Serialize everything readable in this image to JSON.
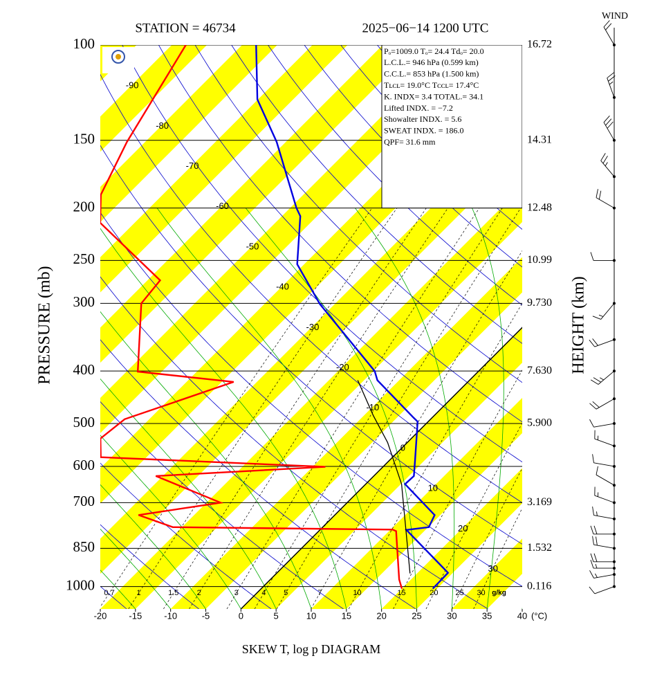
{
  "chart_data": {
    "type": "skewt",
    "title": "STATION = 46734",
    "subtitle": "2025−06−14 1200 UTC",
    "footer": "SKEW T, log p DIAGRAM",
    "y_label": "PRESSURE (mb)",
    "y2_label": "HEIGHT (km)",
    "x_unit": "(°C)",
    "wind_label": "WIND",
    "xlim": [
      -20,
      40
    ],
    "xticks": [
      -20,
      -15,
      -10,
      -5,
      0,
      5,
      10,
      15,
      20,
      25,
      30,
      35,
      40
    ],
    "ylim": [
      1100,
      100
    ],
    "log_y": true,
    "yticks": [
      100,
      150,
      200,
      250,
      300,
      400,
      500,
      600,
      700,
      850,
      1000
    ],
    "height_labels": [
      "16.72",
      "14.31",
      "12.48",
      "10.99",
      "9.730",
      "7.630",
      "5.900",
      null,
      "3.169",
      "1.532",
      "0.116"
    ],
    "isotherm_labels": [
      -90,
      -80,
      -70,
      -60,
      -50,
      -40,
      -30,
      -20,
      -10,
      0,
      10,
      20,
      30
    ],
    "mixing_ratios": [
      0.7,
      1,
      1.5,
      2,
      3,
      4,
      5,
      7,
      10,
      15,
      20,
      25,
      30
    ],
    "mixing_ratio_unit": "g/kg",
    "info": [
      "Pₒ=1009.0 Tₒ= 24.4 Tdₒ= 20.0",
      "L.C.L.= 946 hPa (0.599 km)",
      "C.C.L.= 853 hPa (1.500 km)",
      "Tʟᴄʟ= 19.0°C Tᴄᴄʟ= 17.4°C",
      "K. INDX= 3.4 TOTAL.= 34.1",
      "Lifted INDX. = −7.2",
      "Showalter INDX. = 5.6",
      "SWEAT INDX. = 186.0",
      "QPF= 31.6 mm"
    ],
    "series": [
      {
        "color": "#0000e0",
        "pressure": [
          1009,
          943,
          786,
          777,
          738,
          647,
          625,
          584,
          496,
          488,
          416,
          400,
          301,
          254,
          207,
          200,
          151,
          126,
          100
        ],
        "values": [
          24.4,
          24.3,
          12.3,
          15.1,
          14.2,
          5.6,
          5.7,
          3.6,
          -1.5,
          -2.6,
          -13.1,
          -14.8,
          -32.1,
          -41.0,
          -47.4,
          -49.1,
          -61.3,
          -70.1,
          -78.0
        ]
      },
      {
        "color": "#ff0000",
        "pressure": [
          1009,
          970,
          790,
          785,
          777,
          738,
          700,
          625,
          601,
          577,
          533,
          491,
          419,
          401,
          300,
          272,
          213,
          189,
          151,
          100
        ],
        "values": [
          20.0,
          18.3,
          11.0,
          10.3,
          -21.3,
          -27.9,
          -18.0,
          -31.0,
          -8.2,
          -41.5,
          -44.2,
          -43.5,
          -33.3,
          -48.4,
          -57.6,
          -58.2,
          -74.9,
          -78.8,
          -82.6,
          -88.0
        ]
      },
      {
        "color": "#000000",
        "pressure": [
          946,
          647,
          542,
          483,
          416
        ],
        "values": [
          19.0,
          5.1,
          -2.8,
          -8.7,
          -15.9
        ]
      }
    ],
    "wind": {
      "pressure": [
        1000,
        950,
        925,
        900,
        850,
        800,
        750,
        700,
        650,
        600,
        550,
        500,
        450,
        400,
        350,
        300,
        250,
        200,
        175,
        150,
        125,
        100
      ],
      "direction": [
        250,
        260,
        270,
        270,
        280,
        270,
        280,
        290,
        300,
        280,
        290,
        260,
        240,
        230,
        250,
        220,
        270,
        300,
        320,
        330,
        340,
        330
      ],
      "speed": [
        10,
        15,
        15,
        20,
        20,
        20,
        15,
        15,
        10,
        10,
        15,
        10,
        20,
        25,
        20,
        15,
        10,
        20,
        25,
        30,
        25,
        20
      ]
    }
  }
}
